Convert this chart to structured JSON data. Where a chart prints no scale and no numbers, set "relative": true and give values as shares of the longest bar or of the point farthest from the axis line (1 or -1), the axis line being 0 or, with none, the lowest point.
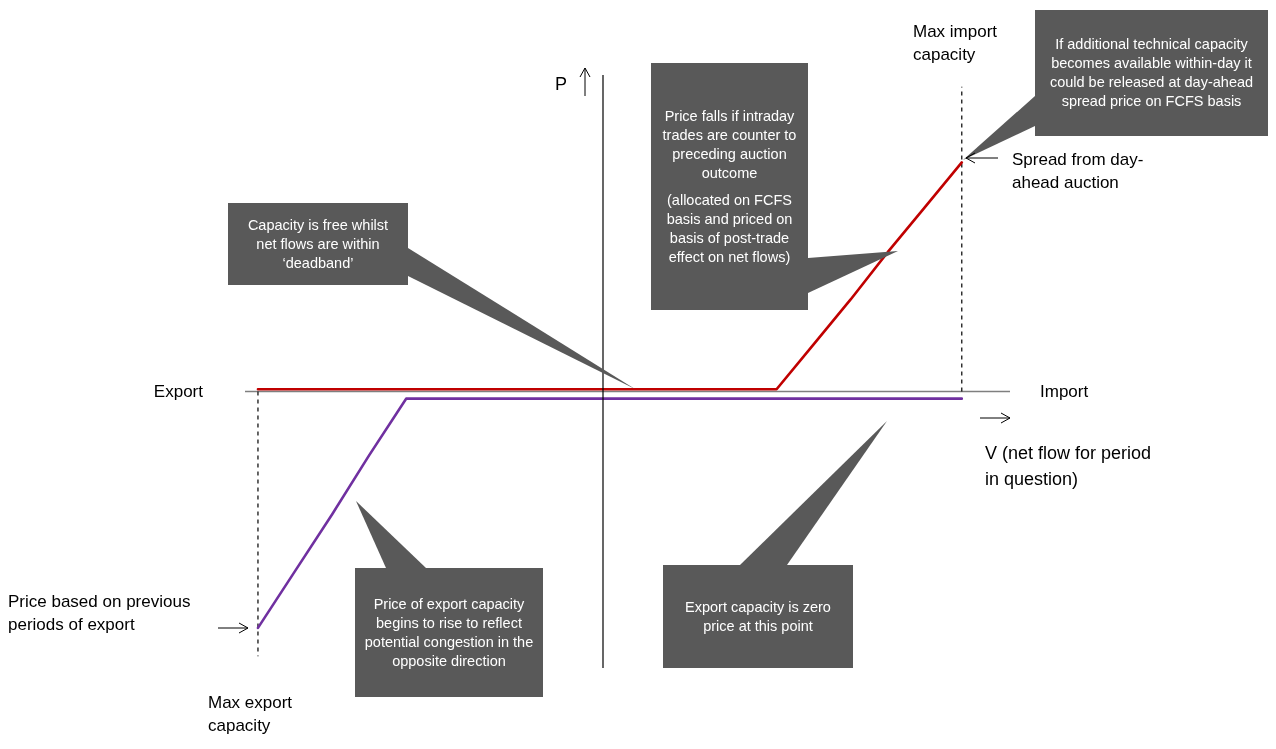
{
  "chart_data": {
    "type": "line",
    "relative": true,
    "marker": "none",
    "line_style": "solid",
    "xlabel": "V (net flow for period in question)",
    "ylabel": "P",
    "categories": [
      null,
      null,
      null,
      null,
      null,
      null,
      null,
      null,
      null,
      null,
      null,
      null,
      null,
      null,
      null,
      null,
      null,
      null,
      null,
      null
    ],
    "series": [
      {
        "color": "#c00000",
        "values": [
          0.01,
          0.01,
          0.01,
          0.01,
          0.01,
          0.01,
          0.01,
          0.01,
          0.01,
          0.01,
          0.01,
          0.01,
          0.01,
          0.01,
          0.01,
          0.2,
          0.39,
          0.59,
          0.78,
          0.97
        ]
      },
      {
        "color": "#7030a0",
        "values": [
          -1,
          -0.76,
          -0.52,
          -0.27,
          -0.03,
          -0.03,
          -0.03,
          -0.03,
          -0.03,
          -0.03,
          -0.03,
          -0.03,
          -0.03,
          -0.03,
          -0.03,
          -0.03,
          -0.03,
          -0.03,
          -0.03,
          -0.03
        ]
      }
    ],
    "annotations": [
      "Export",
      "Import",
      "Capacity is free whilst net flows are within ‘deadband’",
      "Price falls if intraday trades are counter to preceding auction outcome",
      "(allocated on FCFS basis and priced on basis of post-trade effect on net flows)",
      "If additional technical capacity becomes available within-day it could be released at day-ahead spread price on FCFS basis",
      "Spread from day-ahead auction",
      "Price based on previous periods of export",
      "Price of export capacity begins to rise to reflect potential congestion in the opposite direction",
      "Export capacity is zero price at this point",
      "Max export capacity",
      "Max import capacity"
    ]
  }
}
